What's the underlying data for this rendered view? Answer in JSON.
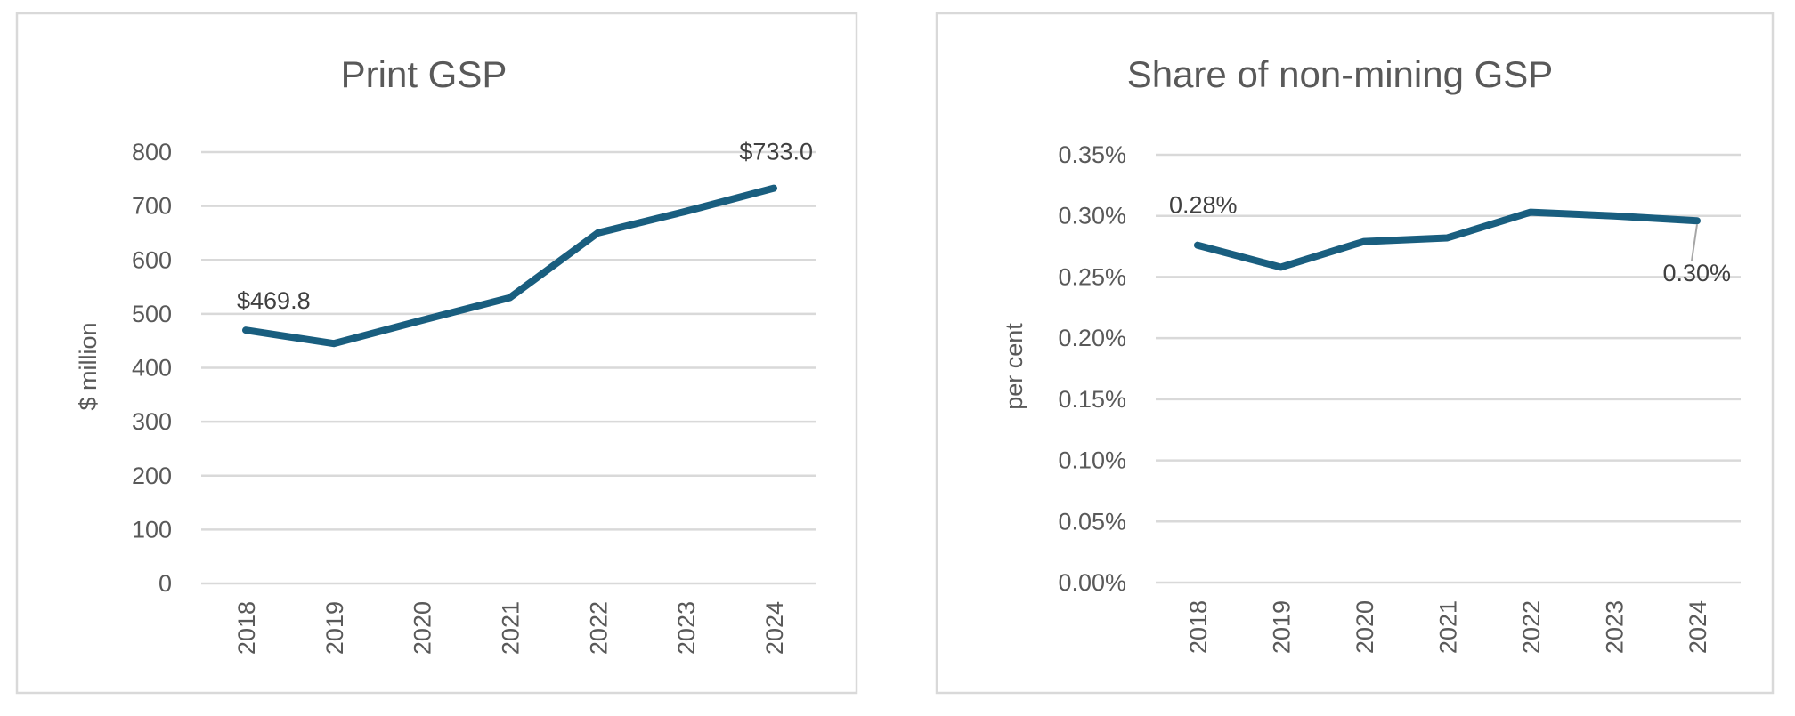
{
  "colors": {
    "series": "#195e7f",
    "grid": "#d9d9d9",
    "text": "#595959"
  },
  "chart_data": [
    {
      "type": "line",
      "title": "Print GSP",
      "xlabel": "",
      "ylabel": "$ million",
      "categories": [
        "2018",
        "2019",
        "2020",
        "2021",
        "2022",
        "2023",
        "2024"
      ],
      "values": [
        469.8,
        445,
        488,
        530,
        650,
        690,
        733.0
      ],
      "ylim": [
        0,
        800
      ],
      "yticks": [
        0,
        100,
        200,
        300,
        400,
        500,
        600,
        700,
        800
      ],
      "ytick_labels": [
        "0",
        "100",
        "200",
        "300",
        "400",
        "500",
        "600",
        "700",
        "800"
      ],
      "grid": true,
      "legend": "none",
      "data_labels": [
        {
          "index": 0,
          "text": "$469.8"
        },
        {
          "index": 6,
          "text": "$733.0"
        }
      ]
    },
    {
      "type": "line",
      "title": "Share of non-mining GSP",
      "xlabel": "",
      "ylabel": "per cent",
      "categories": [
        "2018",
        "2019",
        "2020",
        "2021",
        "2022",
        "2023",
        "2024"
      ],
      "values": [
        0.276,
        0.258,
        0.279,
        0.282,
        0.303,
        0.3,
        0.296
      ],
      "ylim": [
        0,
        0.35
      ],
      "yticks": [
        0,
        0.05,
        0.1,
        0.15,
        0.2,
        0.25,
        0.3,
        0.35
      ],
      "ytick_labels": [
        "0.00%",
        "0.05%",
        "0.10%",
        "0.15%",
        "0.20%",
        "0.25%",
        "0.30%",
        "0.35%"
      ],
      "grid": true,
      "legend": "none",
      "data_labels": [
        {
          "index": 0,
          "text": "0.28%"
        },
        {
          "index": 6,
          "text": "0.30%"
        }
      ]
    }
  ]
}
